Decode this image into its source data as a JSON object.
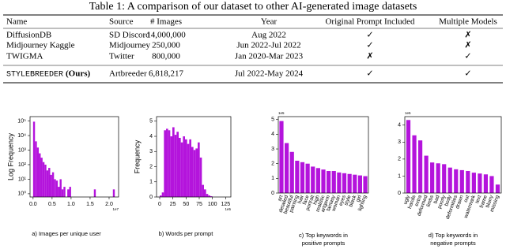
{
  "table": {
    "title": "Table 1: A comparison of our dataset to other AI-generated image datasets",
    "header": [
      "Name",
      "Source",
      "# Images",
      "Year",
      "Original Prompt Included",
      "Multiple Models"
    ],
    "rows": [
      [
        "DiffusionDB",
        "SD Discord",
        "14,000,000",
        "Aug 2022",
        "✓",
        "✗"
      ],
      [
        "Midjourney Kaggle",
        "Midjourney",
        "250,000",
        "Jun 2022-Jul 2022",
        "✓",
        "✗"
      ],
      [
        "TWIGMA",
        "Twitter",
        "800,000",
        "Jan 2020-Mar 2023",
        "✗",
        "✓"
      ],
      [
        "STYLEBREEDER",
        "Artbreeder",
        "6,818,217",
        "Jul 2022-May 2024",
        "✓",
        "✓"
      ]
    ],
    "ours_note": "(Ours)"
  },
  "chart_data": [
    {
      "type": "histogram",
      "caption": [
        "a) Images per unique user"
      ],
      "ylabel": "Log Frequency",
      "color": "#b414dc",
      "yscale": "log",
      "x_offset_label": "1e7",
      "bins": [
        0,
        0.05,
        0.1,
        0.15,
        0.2,
        0.25,
        0.3,
        0.35,
        0.4,
        0.45,
        0.5,
        0.55,
        0.6,
        0.65,
        0.7,
        0.75,
        0.8,
        0.85,
        0.9,
        0.95,
        1.0,
        1.05,
        1.1,
        1.15,
        1.2,
        1.25,
        1.3,
        1.35,
        1.4,
        1.45,
        1.5,
        1.55,
        1.6,
        1.65,
        1.7,
        1.75,
        1.8,
        1.85,
        1.9,
        1.95,
        2.0,
        2.05,
        2.1,
        2.15,
        2.2
      ],
      "values": [
        90000,
        4000,
        1500,
        600,
        300,
        150,
        100,
        40,
        60,
        20,
        30,
        10,
        8,
        3,
        10,
        2,
        3,
        null,
        2,
        3,
        null,
        null,
        null,
        null,
        null,
        null,
        null,
        null,
        null,
        null,
        null,
        null,
        2,
        null,
        null,
        null,
        null,
        null,
        null,
        null,
        null,
        null,
        2,
        null
      ],
      "xlim": [
        -0.08,
        2.25
      ],
      "xticks": [
        {
          "value": 0,
          "label": "0.0"
        },
        0.5,
        {
          "value": 1,
          "label": "1.0"
        },
        1.5,
        {
          "value": 2,
          "label": "2.0"
        }
      ],
      "ylim": [
        0.6,
        200000
      ],
      "yticks": [
        {
          "value": 1,
          "label": "10⁰"
        },
        {
          "value": 10,
          "label": "10¹"
        },
        {
          "value": 100,
          "label": "10²"
        },
        {
          "value": 1000,
          "label": "10³"
        },
        {
          "value": 10000,
          "label": "10⁴"
        },
        {
          "value": 100000,
          "label": "10⁵"
        }
      ]
    },
    {
      "type": "histogram",
      "caption": [
        "b) Words per prompt"
      ],
      "ylabel": "Frequency",
      "color": "#b414dc",
      "x_offset_label": "1e5",
      "bins": [
        0,
        4,
        8,
        12,
        16,
        20,
        24,
        28,
        32,
        36,
        40,
        44,
        48,
        52,
        56,
        60,
        64,
        68,
        72,
        76,
        80,
        84,
        88,
        92,
        96,
        100
      ],
      "values": [
        0.1,
        0.3,
        4.4,
        4.5,
        4.4,
        4.0,
        4.6,
        4.1,
        4.3,
        3.9,
        3.6,
        4.0,
        3.8,
        3.5,
        3.8,
        3.3,
        3.1,
        3.2,
        3.6,
        2.6,
        0.8,
        0.5,
        0.2,
        0.1,
        0.05
      ],
      "xlim": [
        -6,
        135
      ],
      "xticks": [
        0,
        25,
        50,
        75,
        100,
        125
      ],
      "ylim": [
        0,
        5.3
      ],
      "yticks": [
        0,
        1,
        2,
        3,
        4,
        5
      ]
    },
    {
      "type": "bar",
      "caption": [
        "c) Top keywords in",
        "positive prompts"
      ],
      "color": "#b414dc",
      "x_offset_label": "1e5",
      "categories": [
        "art",
        "detailed",
        "beautiful",
        "painting",
        "hair",
        "face",
        "portrait",
        "high",
        "realistic",
        "artgerm",
        "fantasy",
        "woman",
        "eyes",
        "style",
        "black",
        "girl",
        "lighting"
      ],
      "values": [
        4.9,
        3.4,
        2.8,
        2.2,
        2.1,
        2.0,
        1.8,
        1.7,
        1.6,
        1.5,
        1.5,
        1.4,
        1.35,
        1.3,
        1.25,
        1.2,
        1.15
      ],
      "ylim": [
        0,
        5.2
      ],
      "yticks": [
        0,
        1,
        2,
        3,
        4,
        5
      ]
    },
    {
      "type": "bar",
      "caption": [
        "d) Top keywords in",
        "negative prompts"
      ],
      "color": "#b414dc",
      "x_offset_label": "1e5",
      "categories": [
        "ugly",
        "hands",
        "extra",
        "deformed",
        "limbs",
        "bad",
        "poorly",
        "body",
        "deformities",
        "drawn",
        "out",
        "watermark",
        "text",
        "frame",
        "blurry",
        "missing"
      ],
      "values": [
        4.3,
        3.4,
        3.1,
        2.2,
        1.8,
        1.75,
        1.7,
        1.5,
        1.4,
        1.35,
        1.3,
        1.2,
        1.15,
        1.1,
        1.0,
        0.5
      ],
      "ylim": [
        0,
        4.5
      ],
      "yticks": [
        0,
        1,
        2,
        3,
        4
      ]
    }
  ]
}
